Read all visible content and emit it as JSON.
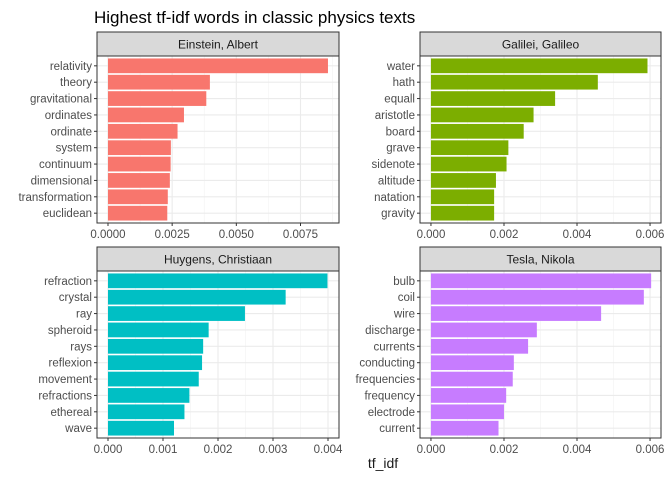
{
  "title": "Highest tf-idf words in classic physics texts",
  "xlabel": "tf_idf",
  "chart_data": [
    {
      "type": "bar",
      "facet": "Einstein, Albert",
      "color": "#F8766D",
      "orientation": "horizontal",
      "categories": [
        "relativity",
        "theory",
        "gravitational",
        "ordinates",
        "ordinate",
        "system",
        "continuum",
        "dimensional",
        "transformation",
        "euclidean"
      ],
      "values": [
        0.00857,
        0.00397,
        0.00383,
        0.00296,
        0.00271,
        0.00245,
        0.00244,
        0.00241,
        0.00233,
        0.00231
      ],
      "xlim": [
        -0.000428,
        0.009
      ],
      "xticks": [
        0.0,
        0.0025,
        0.005,
        0.0075
      ],
      "xtick_labels": [
        "0.0000",
        "0.0025",
        "0.0050",
        "0.0075"
      ]
    },
    {
      "type": "bar",
      "facet": "Galilei, Galileo",
      "color": "#7CAE00",
      "orientation": "horizontal",
      "categories": [
        "water",
        "hath",
        "equall",
        "aristotle",
        "board",
        "grave",
        "sidenote",
        "altitude",
        "natation",
        "gravity"
      ],
      "values": [
        0.00593,
        0.00457,
        0.0034,
        0.00281,
        0.00254,
        0.00212,
        0.00207,
        0.00178,
        0.00173,
        0.00173
      ],
      "xlim": [
        -0.0003,
        0.0063
      ],
      "xticks": [
        0.0,
        0.002,
        0.004,
        0.006
      ],
      "xtick_labels": [
        "0.000",
        "0.002",
        "0.004",
        "0.006"
      ]
    },
    {
      "type": "bar",
      "facet": "Huygens, Christiaan",
      "color": "#00BFC4",
      "orientation": "horizontal",
      "categories": [
        "refraction",
        "crystal",
        "ray",
        "spheroid",
        "rays",
        "reflexion",
        "movement",
        "refractions",
        "ethereal",
        "wave"
      ],
      "values": [
        0.00399,
        0.00323,
        0.00249,
        0.00183,
        0.00173,
        0.00171,
        0.00165,
        0.00148,
        0.00139,
        0.0012
      ],
      "xlim": [
        -0.0002,
        0.0042
      ],
      "xticks": [
        0.0,
        0.001,
        0.002,
        0.003,
        0.004
      ],
      "xtick_labels": [
        "0.000",
        "0.001",
        "0.002",
        "0.003",
        "0.004"
      ]
    },
    {
      "type": "bar",
      "facet": "Tesla, Nikola",
      "color": "#C77CFF",
      "orientation": "horizontal",
      "categories": [
        "bulb",
        "coil",
        "wire",
        "discharge",
        "currents",
        "conducting",
        "frequencies",
        "frequency",
        "electrode",
        "current"
      ],
      "values": [
        0.00603,
        0.00583,
        0.00466,
        0.0029,
        0.00266,
        0.00227,
        0.00224,
        0.00206,
        0.002,
        0.00185
      ],
      "xlim": [
        -0.0003,
        0.0063
      ],
      "xticks": [
        0.0,
        0.002,
        0.004,
        0.006
      ],
      "xtick_labels": [
        "0.000",
        "0.002",
        "0.004",
        "0.006"
      ]
    }
  ]
}
